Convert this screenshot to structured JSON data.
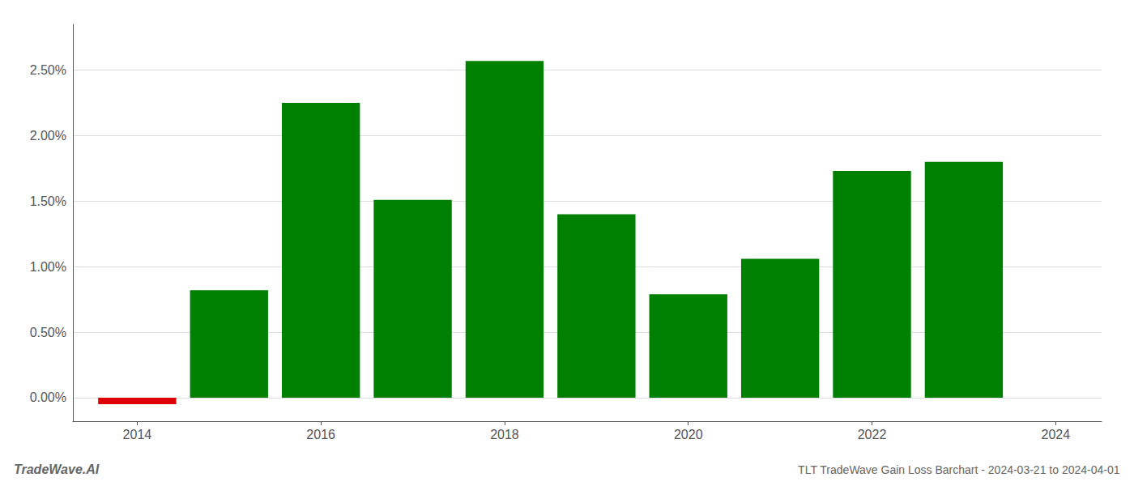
{
  "chart_data": {
    "type": "bar",
    "title": "TLT TradeWave Gain Loss Barchart - 2024-03-21 to 2024-04-01",
    "annotations": [
      "TradeWave.AI"
    ],
    "x": [
      2014,
      2015,
      2016,
      2017,
      2018,
      2019,
      2020,
      2021,
      2022,
      2023
    ],
    "values": [
      -0.05,
      0.82,
      2.25,
      1.51,
      2.57,
      1.4,
      0.79,
      1.06,
      1.73,
      1.8
    ],
    "colors": [
      "#dd0000",
      "#008000",
      "#008000",
      "#008000",
      "#008000",
      "#008000",
      "#008000",
      "#008000",
      "#008000",
      "#008000"
    ],
    "xlim": [
      2013.3,
      2024.5
    ],
    "xticks": [
      2014,
      2016,
      2018,
      2020,
      2022,
      2024
    ],
    "ylim": [
      -0.18,
      2.85
    ],
    "yticks": [
      {
        "value": 0.0,
        "label": "0.00%"
      },
      {
        "value": 0.5,
        "label": "0.50%"
      },
      {
        "value": 1.0,
        "label": "1.00%"
      },
      {
        "value": 1.5,
        "label": "1.50%"
      },
      {
        "value": 2.0,
        "label": "2.00%"
      },
      {
        "value": 2.5,
        "label": "2.50%"
      }
    ],
    "grid": true
  }
}
